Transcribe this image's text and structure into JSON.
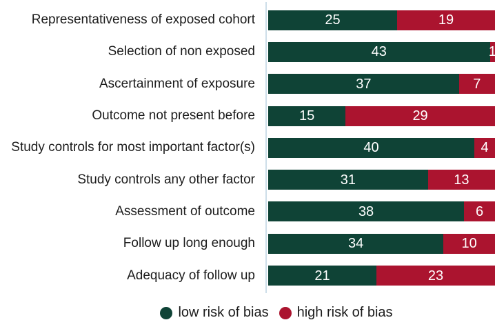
{
  "chart_data": {
    "type": "bar",
    "orientation": "horizontal",
    "stacked": true,
    "title": "",
    "categories": [
      "Representativeness of exposed cohort",
      "Selection of non exposed",
      "Ascertainment of exposure",
      "Outcome not present before",
      "Study controls for most important factor(s)",
      "Study controls any other factor",
      "Assessment of outcome",
      "Follow up long enough",
      "Adequacy of follow up"
    ],
    "series": [
      {
        "name": "low risk of bias",
        "color": "#0f4336",
        "values": [
          25,
          43,
          37,
          15,
          40,
          31,
          38,
          34,
          21
        ]
      },
      {
        "name": "high risk of bias",
        "color": "#ab142f",
        "values": [
          19,
          1,
          7,
          29,
          4,
          13,
          6,
          10,
          23
        ]
      }
    ],
    "xlim": [
      0,
      44
    ],
    "value_labels": "inside segments, centered, white",
    "legend_position": "bottom-center",
    "grid": false,
    "axis_line_color": "#cddee9",
    "label_color": "#1c1c1c",
    "background_color": "#ffffff"
  }
}
